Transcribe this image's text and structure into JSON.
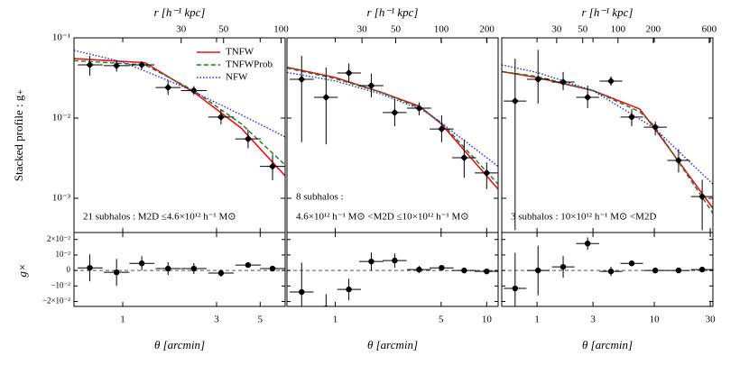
{
  "ylabel": "Stacked profile : g₊",
  "ylabel_lower": "g×",
  "ylim": [
    0.000374,
    0.1
  ],
  "yticks": [
    {
      "value": 0.001,
      "label": "10⁻³"
    },
    {
      "value": 0.01,
      "label": "10⁻²"
    },
    {
      "value": 0.1,
      "label": "10⁻¹"
    }
  ],
  "lower_ylim": [
    -0.0232,
    0.0245
  ],
  "lower_yticks": [
    {
      "value": -0.02,
      "label": "−2×10⁻²"
    },
    {
      "value": -0.01,
      "label": "−10⁻²"
    },
    0,
    {
      "value": 0.01,
      "label": "10⁻²"
    },
    {
      "value": 0.02,
      "label": "2×10⁻²"
    }
  ],
  "models": [
    {
      "name": "TNFW",
      "color": "#e8101a",
      "linestyle": "solid"
    },
    {
      "name": "TNFWProb",
      "color": "#1a7a1a",
      "linestyle": "dashed"
    },
    {
      "name": "NFW",
      "color": "#2626e0",
      "linestyle": "dotted"
    }
  ],
  "legend": "upper right",
  "chart_data": [
    {
      "type": "errorbar",
      "xlabel": "θ  [arcmin]",
      "x2label": "r  [h⁻¹ kpc]",
      "xscale": "log",
      "xlim": [
        0.565,
        6.7
      ],
      "xticks": [
        1,
        3,
        5
      ],
      "x2lim": [
        8.25,
        105
      ],
      "x2ticks": [
        30,
        50,
        100
      ],
      "annotations": [
        "21 subhalos : M2D ≤4.6×10¹² h⁻¹ M⊙"
      ],
      "points": {
        "x": [
          0.68,
          0.93,
          1.25,
          1.7,
          2.3,
          3.16,
          4.34,
          5.78
        ],
        "xlow": [
          0.59,
          0.8,
          1.08,
          1.47,
          1.98,
          2.72,
          3.74,
          4.98
        ],
        "xhigh": [
          0.79,
          1.08,
          1.45,
          1.97,
          2.67,
          3.67,
          5.03,
          6.7
        ],
        "values": [
          0.046,
          0.045,
          0.046,
          0.024,
          0.022,
          0.0103,
          0.0055,
          0.0025
        ],
        "ylow": [
          0.0337,
          0.038,
          0.041,
          0.0195,
          0.0195,
          0.0083,
          0.0042,
          0.00168
        ],
        "yhigh": [
          0.0596,
          0.053,
          0.051,
          0.0295,
          0.025,
          0.0127,
          0.0072,
          0.0035
        ]
      },
      "cross": {
        "values": [
          0.0017,
          -0.0012,
          0.0046,
          0.0012,
          0.0012,
          -0.0017,
          0.0035,
          0.0012
        ],
        "errors": [
          0.0087,
          0.0087,
          0.0046,
          0.0041,
          0.0035,
          0.0023,
          0.0017,
          0.0017
        ]
      },
      "curves": [
        {
          "x": [
            0.565,
            1.3,
            2.3,
            4,
            6.7
          ],
          "values": [
            0.055,
            0.049,
            0.021,
            0.0075,
            0.0019
          ]
        },
        {
          "x": [
            0.565,
            1.3,
            2.3,
            4,
            6.7
          ],
          "values": [
            0.052,
            0.046,
            0.022,
            0.0085,
            0.0026
          ]
        },
        {
          "x": [
            0.565,
            1,
            2,
            4,
            6.7
          ],
          "values": [
            0.07,
            0.05,
            0.025,
            0.011,
            0.0058
          ]
        }
      ]
    },
    {
      "type": "errorbar",
      "xlabel": "θ  [arcmin]",
      "x2label": "r  [h⁻¹ kpc]",
      "xscale": "log",
      "xlim": [
        0.48,
        11.9
      ],
      "xticks": [
        1,
        5,
        10
      ],
      "x2lim": [
        9.6,
        237
      ],
      "x2ticks": [
        30,
        50,
        100,
        200
      ],
      "annotations": [
        "8 subhalos :",
        "4.6×10¹² h⁻¹ M⊙ <M2D ≤10×10¹² h⁻¹ M⊙"
      ],
      "points": {
        "x": [
          0.6,
          0.87,
          1.23,
          1.73,
          2.47,
          3.58,
          5.04,
          7.1,
          10
        ],
        "xlow": [
          0.5,
          0.725,
          1.03,
          1.44,
          2.06,
          2.98,
          4.2,
          5.92,
          8.33
        ],
        "xhigh": [
          0.72,
          1.04,
          1.48,
          2.08,
          2.96,
          4.3,
          6.05,
          8.52,
          12
        ],
        "values": [
          0.0304,
          0.0181,
          0.0365,
          0.0254,
          0.0117,
          0.0133,
          0.0073,
          0.0032,
          0.00207
        ],
        "ylow": [
          0.005,
          0.0047,
          0.0274,
          0.0181,
          0.0079,
          0.0108,
          0.005,
          0.0018,
          0.0013
        ],
        "yhigh": [
          0.0596,
          0.0426,
          0.048,
          0.036,
          0.0172,
          0.0157,
          0.0108,
          0.0054,
          0.0028
        ]
      },
      "cross": {
        "values": [
          -0.0139,
          -0.0243,
          -0.0122,
          0.0058,
          0.0064,
          0.0006,
          0.0017,
          0,
          -0.0006
        ],
        "errors": [
          0.019,
          0.009,
          0.007,
          0.0058,
          0.0046,
          0.0023,
          0.0017,
          0.0012,
          0.0012
        ]
      },
      "curves": [
        {
          "x": [
            0.48,
            1,
            2,
            3.6,
            5,
            11.9
          ],
          "values": [
            0.043,
            0.032,
            0.021,
            0.014,
            0.0085,
            0.0013
          ]
        },
        {
          "x": [
            0.48,
            1,
            2,
            3.6,
            5,
            11.9
          ],
          "values": [
            0.042,
            0.031,
            0.021,
            0.0135,
            0.0088,
            0.0015
          ]
        },
        {
          "x": [
            0.48,
            1,
            2,
            4,
            11.9
          ],
          "values": [
            0.037,
            0.029,
            0.02,
            0.012,
            0.0025
          ]
        }
      ]
    },
    {
      "type": "errorbar",
      "xlabel": "θ  [arcmin]",
      "x2label": "r  [h⁻¹ kpc]",
      "xscale": "log",
      "xlim": [
        0.5,
        31.6
      ],
      "xticks": [
        1,
        3,
        10,
        30
      ],
      "x2lim": [
        10.2,
        645
      ],
      "x2ticks": [
        30,
        50,
        100,
        200,
        600
      ],
      "annotations": [
        "3 subhalos : 10×10¹² h⁻¹ M⊙ <M2D"
      ],
      "points": {
        "x": [
          0.65,
          1.02,
          1.67,
          2.7,
          4.27,
          6.42,
          10.2,
          16.1,
          25.6
        ],
        "xlow": [
          0.52,
          0.82,
          1.34,
          2.16,
          3.42,
          5.14,
          8.16,
          12.9,
          20.5
        ],
        "xhigh": [
          0.81,
          1.28,
          2.09,
          3.38,
          5.34,
          8.03,
          12.8,
          20.1,
          32
        ],
        "values": [
          0.0163,
          0.0304,
          0.0281,
          0.0181,
          0.0289,
          0.0103,
          0.0077,
          0.00296,
          0.00105
        ],
        "ylow": [
          0.0004,
          0.0151,
          0.0223,
          0.0133,
          0.0254,
          0.0079,
          0.0061,
          0.0021,
          0.0004
        ],
        "yhigh": [
          0.055,
          0.071,
          0.0376,
          0.0254,
          0.033,
          0.0129,
          0.009,
          0.0041,
          0.0017
        ]
      },
      "cross": {
        "values": [
          -0.0116,
          0,
          0.0023,
          0.0174,
          -0.0006,
          0.0046,
          0,
          0,
          0.0006
        ],
        "errors": [
          0.023,
          0.016,
          0.007,
          0.004,
          0.003,
          0.0017,
          0.0012,
          0.0012,
          0.0012
        ]
      },
      "curves": [
        {
          "x": [
            0.5,
            1,
            3,
            7.5,
            10,
            31.6
          ],
          "values": [
            0.038,
            0.032,
            0.022,
            0.013,
            0.0075,
            0.00075
          ]
        },
        {
          "x": [
            0.5,
            1,
            3,
            7.5,
            10,
            31.6
          ],
          "values": [
            0.038,
            0.033,
            0.022,
            0.012,
            0.008,
            0.00065
          ]
        },
        {
          "x": [
            0.5,
            1,
            3,
            10,
            31.6
          ],
          "values": [
            0.046,
            0.037,
            0.022,
            0.0075,
            0.0015
          ]
        }
      ]
    }
  ]
}
